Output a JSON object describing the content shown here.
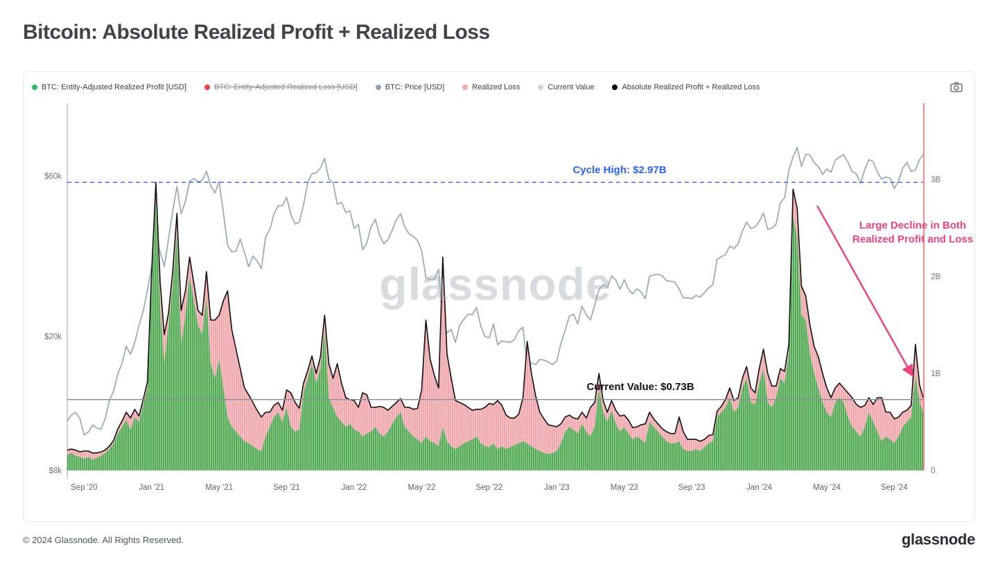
{
  "page": {
    "title": "Bitcoin: Absolute Realized Profit + Realized Loss",
    "watermark": "glassnode",
    "footer_copyright": "© 2024 Glassnode. All Rights Reserved.",
    "footer_logo": "glassnode"
  },
  "legend": {
    "items": [
      {
        "label": "BTC: Entity-Adjusted Realized Profit [USD]",
        "color": "#2dbe64",
        "disabled": false
      },
      {
        "label": "BTC: Entity-Adjusted Realized Loss [USD]",
        "color": "#ef4444",
        "disabled": true
      },
      {
        "label": "BTC: Price [USD]",
        "color": "#94a3b8",
        "disabled": false
      },
      {
        "label": "Realized Loss",
        "color": "#f5a6b0",
        "disabled": false
      },
      {
        "label": "Current Value",
        "color": "#cfd4d9",
        "disabled": false
      },
      {
        "label": "Absolute Realized Profit + Realized Loss",
        "color": "#000000",
        "disabled": false
      }
    ]
  },
  "chart_data": {
    "type": "area",
    "title": "Bitcoin: Absolute Realized Profit + Realized Loss",
    "x_range": {
      "start": "Aug 2020",
      "end": "Oct 2024",
      "points_per_month": 4
    },
    "x_ticks": [
      {
        "label": "Sep '20",
        "month": 1
      },
      {
        "label": "Jan '21",
        "month": 5
      },
      {
        "label": "May '21",
        "month": 9
      },
      {
        "label": "Sep '21",
        "month": 13
      },
      {
        "label": "Jan '22",
        "month": 17
      },
      {
        "label": "May '22",
        "month": 21
      },
      {
        "label": "Sep '22",
        "month": 25
      },
      {
        "label": "Jan '23",
        "month": 29
      },
      {
        "label": "May '23",
        "month": 33
      },
      {
        "label": "Sep '23",
        "month": 37
      },
      {
        "label": "Jan '24",
        "month": 41
      },
      {
        "label": "May '24",
        "month": 45
      },
      {
        "label": "Sep '24",
        "month": 49
      }
    ],
    "left_axis": {
      "scale": "log",
      "unit": "USD thousands",
      "ticks": [
        {
          "label": "$60k",
          "value": 60
        },
        {
          "label": "$20k",
          "value": 20
        },
        {
          "label": "$8k",
          "value": 8
        }
      ],
      "line_color": "#9aa0a6"
    },
    "right_axis": {
      "unit": "USD billions",
      "ticks": [
        {
          "label": "3B",
          "value": 3
        },
        {
          "label": "2B",
          "value": 2
        },
        {
          "label": "1B",
          "value": 1
        },
        {
          "label": "0",
          "value": 0
        }
      ],
      "line_color": "#f48a8a"
    },
    "series": {
      "price": {
        "name": "BTC: Price [USD]",
        "axis": "left",
        "color": "#9cacb9",
        "unit": "k USD",
        "values": [
          11.2,
          11.7,
          11.9,
          11.4,
          10.2,
          10.4,
          10.9,
          10.7,
          10.6,
          11.4,
          12.9,
          13.8,
          15.5,
          16.7,
          18.7,
          17.7,
          19.2,
          21.5,
          23.8,
          27.4,
          32.2,
          38.2,
          35.8,
          32.3,
          38.9,
          47.2,
          55.9,
          46.3,
          50.4,
          57.8,
          58.9,
          57.7,
          58.2,
          62.0,
          56.2,
          53.4,
          57.8,
          46.7,
          37.3,
          35.7,
          35.8,
          39.0,
          35.6,
          32.2,
          34.7,
          33.5,
          31.8,
          39.5,
          41.5,
          46.3,
          48.9,
          49.0,
          51.8,
          46.0,
          43.2,
          43.8,
          49.2,
          57.5,
          60.9,
          61.3,
          63.3,
          67.6,
          58.7,
          57.3,
          49.4,
          50.1,
          46.7,
          47.3,
          41.9,
          43.1,
          36.2,
          37.9,
          42.4,
          44.6,
          40.1,
          37.7,
          38.8,
          41.3,
          44.5,
          46.3,
          42.3,
          40.4,
          39.7,
          38.6,
          36.0,
          29.9,
          29.5,
          29.5,
          31.7,
          22.5,
          20.5,
          21.0,
          19.2,
          21.6,
          22.5,
          23.3,
          23.2,
          24.4,
          21.5,
          20.0,
          19.8,
          21.8,
          18.9,
          19.4,
          19.3,
          19.2,
          19.6,
          20.8,
          21.3,
          16.3,
          16.7,
          16.5,
          17.1,
          17.0,
          16.8,
          16.5,
          16.9,
          19.1,
          20.9,
          23.0,
          23.3,
          21.8,
          24.6,
          23.2,
          22.4,
          24.8,
          27.5,
          28.5,
          28.0,
          30.3,
          29.4,
          27.6,
          29.5,
          27.6,
          26.8,
          27.7,
          27.1,
          25.9,
          30.2,
          30.5,
          30.6,
          30.3,
          29.3,
          29.2,
          29.0,
          27.7,
          26.0,
          26.1,
          25.9,
          26.5,
          26.2,
          27.0,
          27.9,
          28.5,
          33.9,
          34.5,
          35.0,
          37.1,
          36.5,
          37.7,
          41.2,
          43.7,
          41.9,
          42.3,
          43.9,
          46.6,
          41.6,
          42.0,
          43.1,
          49.9,
          51.7,
          62.4,
          68.3,
          73.0,
          64.0,
          69.6,
          69.3,
          65.7,
          64.0,
          60.6,
          62.9,
          61.5,
          66.9,
          68.3,
          69.5,
          66.0,
          61.8,
          60.9,
          57.0,
          62.8,
          67.1,
          66.2,
          61.5,
          58.7,
          59.5,
          59.1,
          55.0,
          58.1,
          63.3,
          65.8,
          61.8,
          62.5,
          67.2,
          69.9
        ]
      },
      "profit": {
        "name": "Realized Profit",
        "axis": "right",
        "color": "#4da850",
        "unit": "B USD",
        "values": [
          0.16,
          0.18,
          0.15,
          0.14,
          0.12,
          0.14,
          0.11,
          0.13,
          0.15,
          0.18,
          0.22,
          0.28,
          0.38,
          0.45,
          0.52,
          0.42,
          0.55,
          0.5,
          0.68,
          0.85,
          1.9,
          2.8,
          1.7,
          1.1,
          1.5,
          1.9,
          2.45,
          1.3,
          1.6,
          2.0,
          1.75,
          1.5,
          1.4,
          1.8,
          1.1,
          0.95,
          1.15,
          0.85,
          0.55,
          0.45,
          0.4,
          0.35,
          0.3,
          0.28,
          0.25,
          0.22,
          0.2,
          0.35,
          0.45,
          0.55,
          0.6,
          0.5,
          0.65,
          0.45,
          0.4,
          0.42,
          0.8,
          0.95,
          1.1,
          0.9,
          1.05,
          1.45,
          0.75,
          0.65,
          0.55,
          0.5,
          0.45,
          0.48,
          0.42,
          0.4,
          0.35,
          0.38,
          0.4,
          0.45,
          0.38,
          0.35,
          0.4,
          0.48,
          0.55,
          0.6,
          0.45,
          0.4,
          0.35,
          0.32,
          0.28,
          0.35,
          0.3,
          0.28,
          0.25,
          0.45,
          0.3,
          0.25,
          0.22,
          0.25,
          0.28,
          0.3,
          0.32,
          0.35,
          0.28,
          0.25,
          0.24,
          0.28,
          0.22,
          0.25,
          0.22,
          0.24,
          0.26,
          0.28,
          0.3,
          0.28,
          0.25,
          0.22,
          0.2,
          0.18,
          0.17,
          0.18,
          0.2,
          0.28,
          0.4,
          0.45,
          0.42,
          0.38,
          0.48,
          0.4,
          0.35,
          0.45,
          0.85,
          0.6,
          0.5,
          0.62,
          0.48,
          0.4,
          0.45,
          0.38,
          0.32,
          0.35,
          0.32,
          0.28,
          0.5,
          0.45,
          0.4,
          0.35,
          0.3,
          0.28,
          0.28,
          0.3,
          0.22,
          0.2,
          0.2,
          0.22,
          0.2,
          0.24,
          0.28,
          0.3,
          0.55,
          0.6,
          0.65,
          0.75,
          0.6,
          0.65,
          0.85,
          0.95,
          0.7,
          0.68,
          0.9,
          1.05,
          0.7,
          0.65,
          0.75,
          0.95,
          0.9,
          1.2,
          2.62,
          2.4,
          1.6,
          1.55,
          1.2,
          1.0,
          0.85,
          0.7,
          0.6,
          0.55,
          0.7,
          0.75,
          0.7,
          0.55,
          0.45,
          0.4,
          0.35,
          0.45,
          0.6,
          0.5,
          0.4,
          0.3,
          0.35,
          0.32,
          0.28,
          0.35,
          0.45,
          0.5,
          0.55,
          0.98,
          0.7,
          0.58
        ]
      },
      "loss": {
        "name": "Realized Loss",
        "axis": "right",
        "color": "#f2a4aa",
        "unit": "B USD",
        "values": [
          0.05,
          0.04,
          0.06,
          0.05,
          0.08,
          0.06,
          0.07,
          0.05,
          0.04,
          0.03,
          0.03,
          0.03,
          0.05,
          0.06,
          0.08,
          0.12,
          0.08,
          0.06,
          0.05,
          0.06,
          0.15,
          0.17,
          0.25,
          0.3,
          0.12,
          0.15,
          0.2,
          0.35,
          0.25,
          0.2,
          0.18,
          0.15,
          0.2,
          0.25,
          0.45,
          0.6,
          0.45,
          0.9,
          1.3,
          1.0,
          0.85,
          0.7,
          0.55,
          0.5,
          0.45,
          0.4,
          0.35,
          0.25,
          0.15,
          0.12,
          0.1,
          0.12,
          0.18,
          0.35,
          0.3,
          0.22,
          0.1,
          0.08,
          0.08,
          0.1,
          0.12,
          0.15,
          0.35,
          0.3,
          0.55,
          0.4,
          0.3,
          0.25,
          0.3,
          0.25,
          0.45,
          0.4,
          0.25,
          0.2,
          0.28,
          0.3,
          0.22,
          0.18,
          0.15,
          0.14,
          0.2,
          0.25,
          0.28,
          0.32,
          0.55,
          1.2,
          0.85,
          0.7,
          0.6,
          1.75,
          0.9,
          0.7,
          0.5,
          0.45,
          0.4,
          0.35,
          0.3,
          0.28,
          0.35,
          0.4,
          0.45,
          0.4,
          0.5,
          0.42,
          0.35,
          0.3,
          0.28,
          0.3,
          0.45,
          1.05,
          0.75,
          0.55,
          0.4,
          0.35,
          0.3,
          0.28,
          0.25,
          0.2,
          0.15,
          0.12,
          0.12,
          0.15,
          0.12,
          0.14,
          0.3,
          0.25,
          0.15,
          0.12,
          0.1,
          0.1,
          0.14,
          0.16,
          0.12,
          0.14,
          0.12,
          0.1,
          0.15,
          0.2,
          0.1,
          0.08,
          0.08,
          0.08,
          0.1,
          0.1,
          0.1,
          0.25,
          0.18,
          0.12,
          0.12,
          0.1,
          0.1,
          0.08,
          0.08,
          0.07,
          0.06,
          0.06,
          0.08,
          0.1,
          0.12,
          0.1,
          0.1,
          0.12,
          0.15,
          0.12,
          0.15,
          0.2,
          0.3,
          0.22,
          0.12,
          0.1,
          0.12,
          0.1,
          0.28,
          0.3,
          0.3,
          0.25,
          0.3,
          0.28,
          0.32,
          0.3,
          0.25,
          0.2,
          0.15,
          0.15,
          0.15,
          0.25,
          0.3,
          0.28,
          0.3,
          0.22,
          0.15,
          0.18,
          0.35,
          0.45,
          0.25,
          0.28,
          0.25,
          0.2,
          0.15,
          0.12,
          0.12,
          0.32,
          0.18,
          0.15
        ]
      },
      "sum_line": {
        "name": "Absolute Realized Profit + Realized Loss",
        "color": "#101010",
        "derivation": "profit + loss"
      }
    },
    "annotations": {
      "cycle_high": {
        "text": "Cycle High: $2.97B",
        "value": 2.97,
        "color": "#2962ff",
        "style": "dashed"
      },
      "current_value": {
        "text": "Current Value: $0.73B",
        "value": 0.73,
        "color": "#111111",
        "line_color": "#8a9097"
      },
      "decline_note": {
        "line1": "Large Decline in Both",
        "line2": "Realized Profit and Loss",
        "color": "#f0427c",
        "arrow": {
          "from_value": 2.73,
          "to_value": 0.97
        }
      }
    }
  }
}
